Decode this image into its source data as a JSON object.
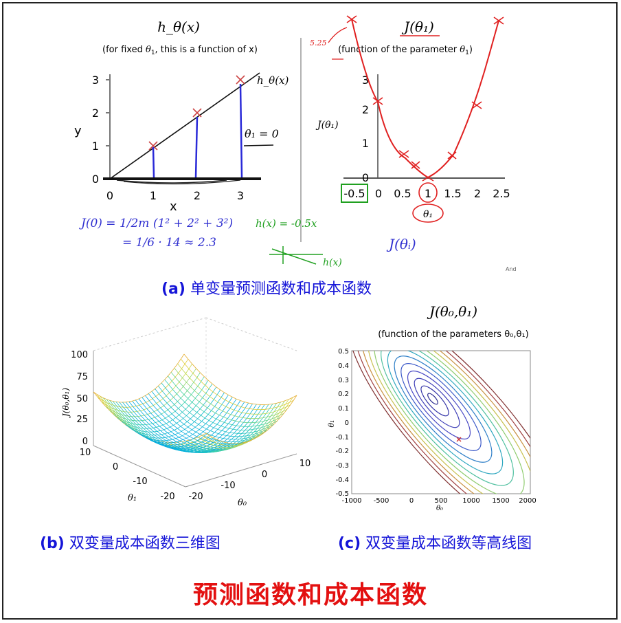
{
  "panel_a": {
    "left_title": "h_θ(x)",
    "left_subtitle_pre": "(for fixed ",
    "left_subtitle_post": ", this is a function of x)",
    "left_ylabel": "y",
    "left_xlabel": "x",
    "left_yticks": [
      "0",
      "1",
      "2",
      "3"
    ],
    "left_xticks": [
      "0",
      "1",
      "2",
      "3"
    ],
    "line_label": "h_θ(x)",
    "theta_label": "θ₁ = 0",
    "hand_eq1": "J(0) = 1/2m (1² + 2² + 3²)",
    "hand_eq2": "= 1/6 · 14 ≈ 2.3",
    "hand_hx": "h(x) = -0.5x",
    "hand_hx2": "h(x)",
    "right_title": "J(θ₁)",
    "right_subtitle_pre": "(function of the parameter ",
    "right_subtitle_post": ")",
    "right_ylabel": "J(θ₁)",
    "right_yticks": [
      "0",
      "1",
      "2",
      "3"
    ],
    "right_xticks": [
      "-0.5",
      "0",
      "0.5",
      "1",
      "1.5",
      "2",
      "2.5"
    ],
    "right_xlabel": "θ₁",
    "hand_jtheta": "J(θᵢ)",
    "hand_note": "5.25",
    "corner_text": "And",
    "caption_prefix": "(a)",
    "caption_text": " 单变量预测函数和成本函数"
  },
  "panel_b": {
    "zlabel": "J(θ₀,θ₁)",
    "zticks": [
      "0",
      "25",
      "50",
      "75",
      "100"
    ],
    "theta1_ticks": [
      "10",
      "0",
      "-10",
      "-20"
    ],
    "theta0_ticks": [
      "-20",
      "-10",
      "0",
      "10"
    ],
    "theta1_label": "θ₁",
    "theta0_label": "θ₀",
    "caption_prefix": "(b)",
    "caption_text": " 双变量成本函数三维图"
  },
  "panel_c": {
    "title": "J(θ₀,θ₁)",
    "subtitle": "(function of the parameters θ₀,θ₁)",
    "yticks": [
      "0.5",
      "0.4",
      "0.3",
      "0.2",
      "0.1",
      "0",
      "-0.1",
      "-0.2",
      "-0.3",
      "-0.4",
      "-0.5"
    ],
    "xticks": [
      "-1000",
      "-500",
      "0",
      "500",
      "1000",
      "1500",
      "2000"
    ],
    "ylabel": "θ₁",
    "xlabel": "θ₀",
    "caption_prefix": "(c)",
    "caption_text": " 双变量成本函数等高线图"
  },
  "main_title": "预测函数和成本函数",
  "colors": {
    "caption": "#1515d8",
    "title": "#e31010",
    "hand_red": "#e02020",
    "hand_blue": "#3030d0",
    "hand_green": "#20a020"
  }
}
